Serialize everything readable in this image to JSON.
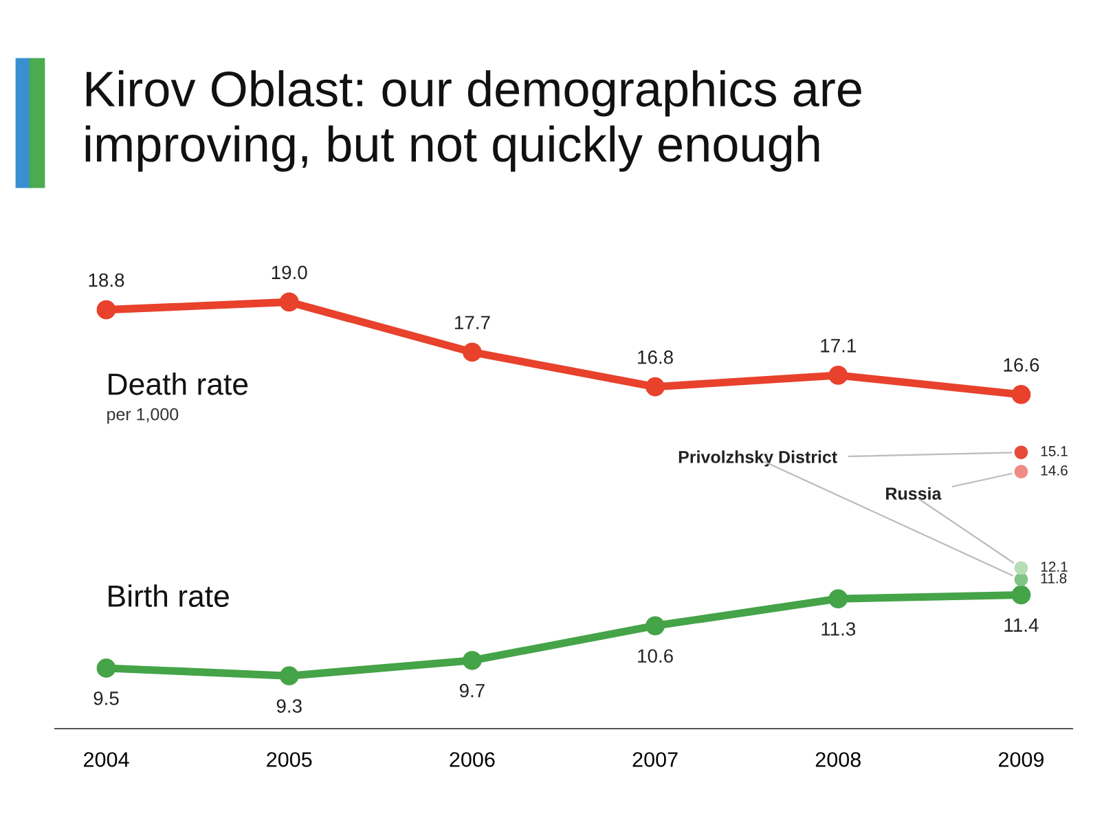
{
  "chart_data": {
    "type": "line",
    "title": "Kirov Oblast: our demographics are\nimproving, but not quickly enough",
    "categories": [
      "2004",
      "2005",
      "2006",
      "2007",
      "2008",
      "2009"
    ],
    "marker": "circle",
    "grid": false,
    "legend": false,
    "annotations": [
      "per 1,000"
    ],
    "series": [
      {
        "name": "Death rate",
        "color": "#e8412c",
        "values": [
          18.8,
          19.0,
          17.7,
          16.8,
          17.1,
          16.6
        ],
        "value_labels": [
          "18.8",
          "19.0",
          "17.7",
          "16.8",
          "17.1",
          "16.6"
        ]
      },
      {
        "name": "Birth rate",
        "color": "#45a348",
        "values": [
          9.5,
          9.3,
          9.7,
          10.6,
          11.3,
          11.4
        ],
        "value_labels": [
          "9.5",
          "9.3",
          "9.7",
          "10.6",
          "11.3",
          "11.4"
        ]
      },
      {
        "name": "Privolzhsky District",
        "type": "scatter",
        "color": "#e84a3a",
        "values": [
          null,
          null,
          null,
          null,
          null,
          15.1
        ],
        "value_labels": [
          null,
          null,
          null,
          null,
          null,
          "15.1"
        ]
      },
      {
        "type": "scatter",
        "color": "#7fc483",
        "values": [
          null,
          null,
          null,
          null,
          null,
          11.8
        ],
        "value_labels": [
          null,
          null,
          null,
          null,
          null,
          "11.8"
        ]
      },
      {
        "name": "Russia",
        "type": "scatter",
        "color": "#f08c86",
        "values": [
          null,
          null,
          null,
          null,
          null,
          14.6
        ],
        "value_labels": [
          null,
          null,
          null,
          null,
          null,
          "14.6"
        ]
      },
      {
        "type": "scatter",
        "color": "#b5ddb6",
        "values": [
          null,
          null,
          null,
          null,
          null,
          12.1
        ],
        "value_labels": [
          null,
          null,
          null,
          null,
          null,
          "12.1"
        ]
      }
    ]
  }
}
